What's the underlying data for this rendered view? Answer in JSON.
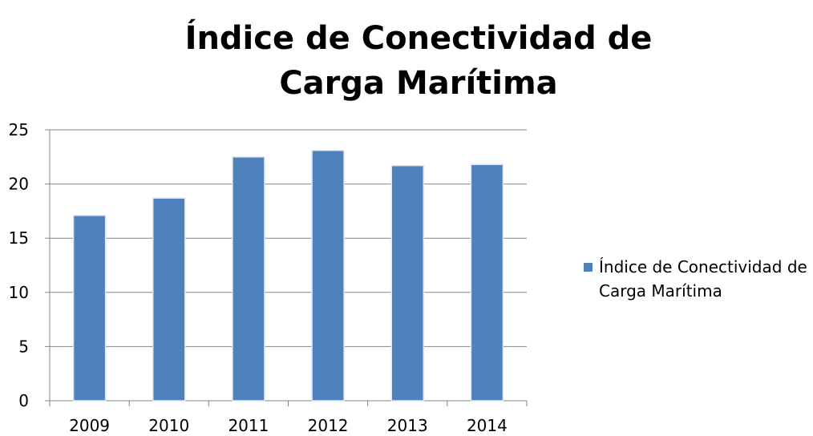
{
  "chart_data": {
    "type": "bar",
    "title": "Índice de Conectividad de Carga Marítima",
    "categories": [
      "2009",
      "2010",
      "2011",
      "2012",
      "2013",
      "2014"
    ],
    "series": [
      {
        "name": "Índice de Conectividad de Carga Marítima",
        "color": "#4f81bd",
        "values": [
          17.1,
          18.7,
          22.5,
          23.1,
          21.7,
          21.8
        ]
      }
    ],
    "ylim": [
      0,
      25
    ],
    "yticks": [
      0,
      5,
      10,
      15,
      20,
      25
    ],
    "grid": true,
    "legend": "right"
  }
}
